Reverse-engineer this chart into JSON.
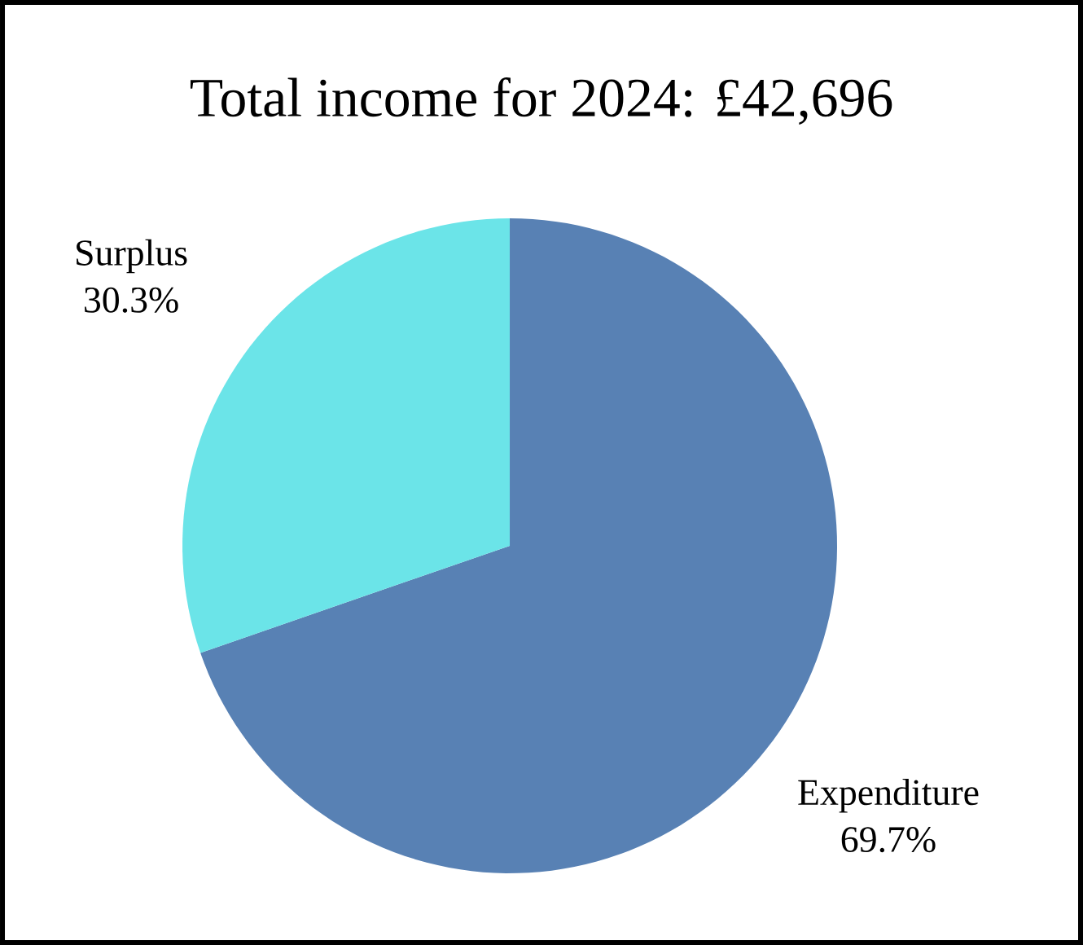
{
  "chart_data": {
    "type": "pie",
    "title": "Total income for 2024: £42,696",
    "categories": [
      "Expenditure",
      "Surplus"
    ],
    "values": [
      69.7,
      30.3
    ],
    "value_labels": [
      "69.7%",
      "30.3%"
    ],
    "colors": [
      "#5881b4",
      "#6be4e8"
    ]
  }
}
